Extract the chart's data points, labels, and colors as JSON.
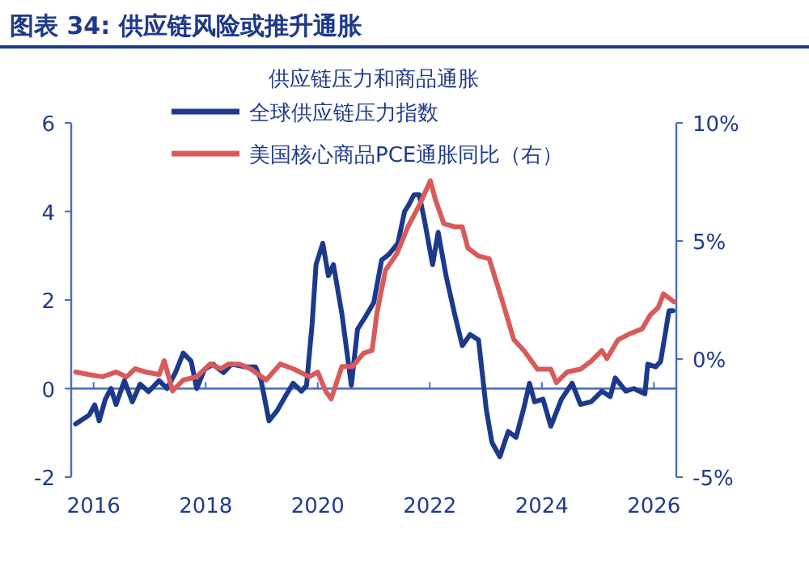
{
  "chart_data": {
    "type": "line",
    "title": "图表 34: 供应链风险或推升通胀",
    "subtitle": "供应链压力和商品通胀",
    "xlim": [
      2015.6,
      2026.4
    ],
    "xticks": [
      2016,
      2018,
      2020,
      2022,
      2024,
      2026
    ],
    "ylim": [
      -2,
      6
    ],
    "yticks": [
      -2,
      0,
      2,
      4,
      6
    ],
    "y2lim": [
      -5,
      10
    ],
    "y2ticks": [
      {
        "value": -5,
        "label": "-5%"
      },
      {
        "value": 0,
        "label": "0%"
      },
      {
        "value": 5,
        "label": "5%"
      },
      {
        "value": 10,
        "label": "10%"
      }
    ],
    "legend": "top",
    "grid": false,
    "marker": "none",
    "line_style": "solid",
    "ref_lines": [
      {
        "axis": "y",
        "value": 0,
        "color": "#4a6cc0"
      }
    ],
    "series": [
      {
        "name": "全球供应链压力指数",
        "color": "#1c3a8c",
        "x": [
          2015.68,
          2015.92,
          2016.02,
          2016.1,
          2016.21,
          2016.31,
          2016.4,
          2016.55,
          2016.69,
          2016.83,
          2016.98,
          2017.17,
          2017.31,
          2017.46,
          2017.6,
          2017.74,
          2017.84,
          2017.98,
          2018.13,
          2018.32,
          2018.46,
          2018.7,
          2018.89,
          2018.99,
          2019.13,
          2019.28,
          2019.42,
          2019.56,
          2019.71,
          2019.8,
          2019.9,
          2019.97,
          2020.09,
          2020.19,
          2020.28,
          2020.43,
          2020.6,
          2020.71,
          2020.83,
          2021.0,
          2021.14,
          2021.27,
          2021.43,
          2021.55,
          2021.62,
          2021.72,
          2021.81,
          2021.91,
          2022.05,
          2022.15,
          2022.29,
          2022.44,
          2022.58,
          2022.72,
          2022.87,
          2023.01,
          2023.11,
          2023.25,
          2023.4,
          2023.54,
          2023.68,
          2023.78,
          2023.87,
          2024.02,
          2024.16,
          2024.35,
          2024.54,
          2024.69,
          2024.88,
          2025.07,
          2025.22,
          2025.31,
          2025.5,
          2025.64,
          2025.84,
          2025.89,
          2026.03,
          2026.12,
          2026.27,
          2026.34
        ],
        "values": [
          -0.8,
          -0.6,
          -0.37,
          -0.73,
          -0.24,
          0,
          -0.36,
          0.18,
          -0.3,
          0.1,
          -0.07,
          0.18,
          0,
          0.36,
          0.8,
          0.62,
          0,
          0.43,
          0.55,
          0.36,
          0.55,
          0.49,
          0.49,
          0.18,
          -0.73,
          -0.49,
          -0.18,
          0.12,
          -0.06,
          0.07,
          1.46,
          2.8,
          3.28,
          2.55,
          2.8,
          1.7,
          0.07,
          1.34,
          1.58,
          1.94,
          2.9,
          3.03,
          3.28,
          4.0,
          4.14,
          4.38,
          4.38,
          3.77,
          2.8,
          3.53,
          2.55,
          1.7,
          0.97,
          1.22,
          1.1,
          -0.49,
          -1.22,
          -1.54,
          -0.97,
          -1.1,
          -0.43,
          0.12,
          -0.3,
          -0.24,
          -0.85,
          -0.24,
          0.12,
          -0.36,
          -0.3,
          -0.06,
          -0.18,
          0.24,
          -0.06,
          0,
          -0.12,
          0.55,
          0.49,
          0.61,
          1.76,
          1.76
        ]
      },
      {
        "name": "美国核心商品PCE通胀同比（右）",
        "color": "#d95a5a",
        "axis": "y2",
        "x": [
          2015.68,
          2015.92,
          2016.16,
          2016.4,
          2016.59,
          2016.74,
          2016.93,
          2017.17,
          2017.26,
          2017.41,
          2017.6,
          2017.84,
          2018.08,
          2018.27,
          2018.41,
          2018.6,
          2018.8,
          2019.08,
          2019.33,
          2019.56,
          2019.85,
          2020.0,
          2020.14,
          2020.24,
          2020.43,
          2020.62,
          2020.82,
          2020.97,
          2021.06,
          2021.21,
          2021.41,
          2021.61,
          2021.81,
          2022.01,
          2022.1,
          2022.25,
          2022.44,
          2022.58,
          2022.68,
          2022.87,
          2023.06,
          2023.3,
          2023.5,
          2023.68,
          2023.92,
          2024.16,
          2024.26,
          2024.45,
          2024.69,
          2024.88,
          2025.07,
          2025.16,
          2025.36,
          2025.55,
          2025.79,
          2025.93,
          2026.08,
          2026.17,
          2026.36
        ],
        "values": [
          -0.55,
          -0.66,
          -0.75,
          -0.55,
          -0.75,
          -0.41,
          -0.55,
          -0.66,
          -0.07,
          -1.35,
          -0.89,
          -0.75,
          -0.21,
          -0.41,
          -0.21,
          -0.21,
          -0.41,
          -0.89,
          -0.21,
          -0.41,
          -0.75,
          -0.55,
          -1.35,
          -1.69,
          -0.32,
          -0.32,
          0.25,
          0.36,
          1.99,
          3.77,
          4.45,
          5.6,
          6.5,
          7.55,
          6.76,
          5.73,
          5.6,
          5.6,
          4.7,
          4.36,
          4.25,
          2.42,
          0.82,
          0.36,
          -0.43,
          -0.43,
          -1.0,
          -0.55,
          -0.43,
          -0.09,
          0.36,
          0.02,
          0.82,
          1.05,
          1.28,
          1.85,
          2.19,
          2.76,
          2.42
        ]
      }
    ]
  }
}
